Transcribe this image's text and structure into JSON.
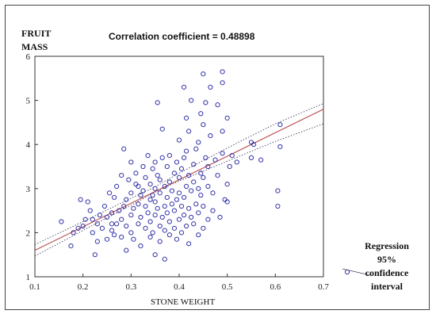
{
  "chart_data": {
    "type": "scatter",
    "title": "Correlation coefficient  = 0.48898",
    "ylabel_lines": [
      "FRUIT",
      "MASS"
    ],
    "xlabel": "STONE WEIGHT",
    "xlim": [
      0.1,
      0.7
    ],
    "ylim": [
      1,
      6
    ],
    "x_ticks": [
      0.1,
      0.2,
      0.3,
      0.4,
      0.5,
      0.6,
      0.7
    ],
    "y_ticks": [
      1,
      2,
      3,
      4,
      5,
      6
    ],
    "grid": false,
    "legend_position": "bottom-right",
    "legend_lines": [
      "Regression",
      "95%",
      "confidence",
      "interval"
    ],
    "colors": {
      "points": "#3333aa",
      "regression": "#b84a4a",
      "confidence": "#444466"
    },
    "regression": {
      "slope": 5.333,
      "intercept": 1.067
    },
    "confidence_band": {
      "x": [
        0.1,
        0.2,
        0.3,
        0.35,
        0.4,
        0.5,
        0.6,
        0.7
      ],
      "lower": [
        1.47,
        2.05,
        2.62,
        2.92,
        3.17,
        3.62,
        4.07,
        4.47
      ],
      "upper": [
        1.73,
        2.25,
        2.78,
        3.04,
        3.35,
        3.92,
        4.47,
        4.93
      ]
    },
    "points": [
      [
        0.155,
        2.25
      ],
      [
        0.175,
        1.7
      ],
      [
        0.18,
        2.0
      ],
      [
        0.19,
        2.1
      ],
      [
        0.195,
        2.75
      ],
      [
        0.2,
        2.15
      ],
      [
        0.205,
        2.3
      ],
      [
        0.21,
        2.7
      ],
      [
        0.215,
        2.5
      ],
      [
        0.22,
        2.0
      ],
      [
        0.22,
        2.3
      ],
      [
        0.225,
        1.5
      ],
      [
        0.23,
        1.8
      ],
      [
        0.23,
        2.2
      ],
      [
        0.235,
        2.4
      ],
      [
        0.24,
        2.1
      ],
      [
        0.245,
        2.6
      ],
      [
        0.25,
        1.85
      ],
      [
        0.25,
        2.35
      ],
      [
        0.255,
        2.9
      ],
      [
        0.26,
        2.05
      ],
      [
        0.26,
        2.45
      ],
      [
        0.265,
        1.95
      ],
      [
        0.265,
        2.8
      ],
      [
        0.27,
        2.2
      ],
      [
        0.27,
        3.05
      ],
      [
        0.275,
        2.5
      ],
      [
        0.28,
        1.9
      ],
      [
        0.28,
        2.3
      ],
      [
        0.28,
        3.3
      ],
      [
        0.285,
        2.6
      ],
      [
        0.285,
        3.9
      ],
      [
        0.29,
        1.6
      ],
      [
        0.29,
        2.15
      ],
      [
        0.29,
        2.75
      ],
      [
        0.295,
        3.2
      ],
      [
        0.3,
        2.0
      ],
      [
        0.3,
        2.4
      ],
      [
        0.3,
        2.9
      ],
      [
        0.3,
        3.6
      ],
      [
        0.305,
        1.85
      ],
      [
        0.305,
        2.55
      ],
      [
        0.31,
        3.1
      ],
      [
        0.31,
        3.35
      ],
      [
        0.315,
        2.2
      ],
      [
        0.315,
        2.65
      ],
      [
        0.315,
        3.05
      ],
      [
        0.32,
        1.7
      ],
      [
        0.32,
        2.35
      ],
      [
        0.32,
        2.85
      ],
      [
        0.325,
        2.95
      ],
      [
        0.325,
        3.5
      ],
      [
        0.33,
        2.1
      ],
      [
        0.33,
        2.6
      ],
      [
        0.33,
        3.25
      ],
      [
        0.335,
        3.75
      ],
      [
        0.335,
        2.45
      ],
      [
        0.34,
        1.9
      ],
      [
        0.34,
        2.25
      ],
      [
        0.34,
        2.75
      ],
      [
        0.34,
        3.1
      ],
      [
        0.345,
        2.0
      ],
      [
        0.345,
        2.85
      ],
      [
        0.345,
        3.45
      ],
      [
        0.35,
        1.5
      ],
      [
        0.35,
        2.4
      ],
      [
        0.35,
        2.7
      ],
      [
        0.35,
        3.0
      ],
      [
        0.35,
        3.6
      ],
      [
        0.355,
        4.95
      ],
      [
        0.355,
        2.55
      ],
      [
        0.355,
        3.3
      ],
      [
        0.36,
        1.8
      ],
      [
        0.36,
        2.15
      ],
      [
        0.36,
        2.9
      ],
      [
        0.36,
        3.2
      ],
      [
        0.365,
        4.35
      ],
      [
        0.365,
        2.35
      ],
      [
        0.365,
        3.7
      ],
      [
        0.37,
        1.4
      ],
      [
        0.37,
        2.05
      ],
      [
        0.37,
        2.6
      ],
      [
        0.37,
        3.05
      ],
      [
        0.375,
        2.45
      ],
      [
        0.375,
        2.8
      ],
      [
        0.375,
        3.5
      ],
      [
        0.38,
        1.95
      ],
      [
        0.38,
        2.25
      ],
      [
        0.38,
        3.15
      ],
      [
        0.38,
        3.75
      ],
      [
        0.385,
        2.65
      ],
      [
        0.385,
        2.95
      ],
      [
        0.39,
        2.1
      ],
      [
        0.39,
        2.5
      ],
      [
        0.39,
        3.35
      ],
      [
        0.395,
        1.85
      ],
      [
        0.395,
        2.75
      ],
      [
        0.395,
        3.6
      ],
      [
        0.4,
        2.3
      ],
      [
        0.4,
        2.9
      ],
      [
        0.4,
        3.25
      ],
      [
        0.4,
        4.1
      ],
      [
        0.405,
        2.0
      ],
      [
        0.405,
        2.6
      ],
      [
        0.405,
        3.45
      ],
      [
        0.41,
        2.4
      ],
      [
        0.41,
        2.8
      ],
      [
        0.41,
        3.7
      ],
      [
        0.41,
        5.3
      ],
      [
        0.415,
        2.15
      ],
      [
        0.415,
        3.05
      ],
      [
        0.415,
        3.85
      ],
      [
        0.415,
        4.6
      ],
      [
        0.42,
        1.75
      ],
      [
        0.42,
        2.55
      ],
      [
        0.42,
        3.3
      ],
      [
        0.42,
        4.3
      ],
      [
        0.425,
        2.35
      ],
      [
        0.425,
        2.95
      ],
      [
        0.425,
        5.0
      ],
      [
        0.43,
        2.2
      ],
      [
        0.43,
        3.15
      ],
      [
        0.43,
        3.55
      ],
      [
        0.435,
        2.65
      ],
      [
        0.435,
        3.9
      ],
      [
        0.44,
        1.95
      ],
      [
        0.44,
        2.45
      ],
      [
        0.44,
        3.0
      ],
      [
        0.44,
        4.05
      ],
      [
        0.445,
        2.85
      ],
      [
        0.445,
        3.35
      ],
      [
        0.445,
        4.7
      ],
      [
        0.45,
        2.1
      ],
      [
        0.45,
        2.6
      ],
      [
        0.45,
        3.25
      ],
      [
        0.45,
        4.45
      ],
      [
        0.45,
        5.6
      ],
      [
        0.455,
        3.7
      ],
      [
        0.455,
        4.95
      ],
      [
        0.46,
        2.3
      ],
      [
        0.46,
        3.05
      ],
      [
        0.46,
        3.5
      ],
      [
        0.465,
        4.2
      ],
      [
        0.465,
        5.3
      ],
      [
        0.47,
        2.5
      ],
      [
        0.47,
        2.9
      ],
      [
        0.475,
        3.65
      ],
      [
        0.48,
        3.3
      ],
      [
        0.48,
        4.9
      ],
      [
        0.485,
        2.35
      ],
      [
        0.49,
        3.8
      ],
      [
        0.49,
        4.3
      ],
      [
        0.49,
        5.4
      ],
      [
        0.49,
        5.65
      ],
      [
        0.495,
        2.75
      ],
      [
        0.5,
        3.1
      ],
      [
        0.5,
        4.6
      ],
      [
        0.505,
        3.5
      ],
      [
        0.51,
        3.75
      ],
      [
        0.52,
        3.6
      ],
      [
        0.55,
        3.7
      ],
      [
        0.55,
        4.05
      ],
      [
        0.555,
        4.0
      ],
      [
        0.57,
        3.65
      ],
      [
        0.605,
        2.95
      ],
      [
        0.605,
        2.6
      ],
      [
        0.61,
        3.95
      ],
      [
        0.61,
        4.45
      ],
      [
        0.5,
        2.7
      ],
      [
        0.26,
        2.2
      ]
    ]
  }
}
